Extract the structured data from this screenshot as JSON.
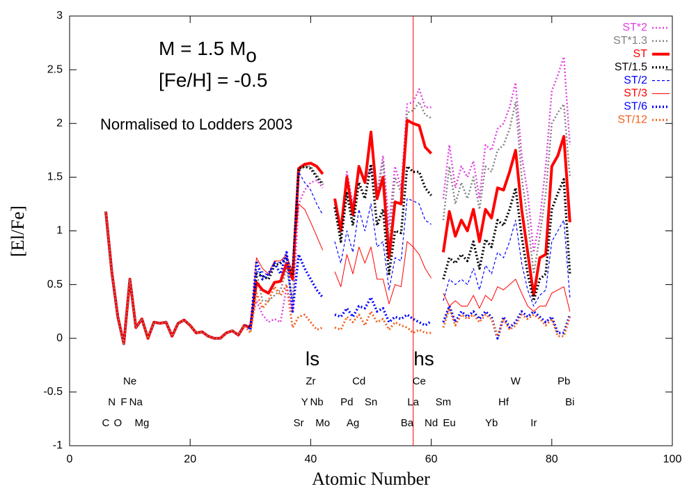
{
  "chart_data": {
    "type": "line",
    "x_label": "Atomic Number",
    "y_label": "[El/Fe]",
    "mass_label": "M = 1.5 M",
    "mass_sub": "o",
    "metallicity_label": "[Fe/H] = -0.5",
    "norm_label": "Normalised to Lodders 2003",
    "annotations": [
      "ls",
      "hs"
    ],
    "vline_x": 57,
    "vline_color": "#ff0000",
    "xlim": [
      0,
      100
    ],
    "xticks": [
      0,
      20,
      40,
      60,
      80,
      100
    ],
    "ylim": [
      -1,
      3
    ],
    "yticks": [
      -1,
      -0.5,
      0,
      0.5,
      1,
      1.5,
      2,
      2.5,
      3
    ],
    "legend": "upper right",
    "element_labels": [
      [
        {
          "symbol": "Ne",
          "z": 10
        },
        {
          "symbol": "Zr",
          "z": 40
        },
        {
          "symbol": "Cd",
          "z": 48
        },
        {
          "symbol": "Ce",
          "z": 58
        },
        {
          "symbol": "W",
          "z": 74
        },
        {
          "symbol": "Pb",
          "z": 82
        }
      ],
      [
        {
          "symbol": "N",
          "z": 7
        },
        {
          "symbol": "F",
          "z": 9
        },
        {
          "symbol": "Na",
          "z": 11
        },
        {
          "symbol": "Y",
          "z": 39
        },
        {
          "symbol": "Nb",
          "z": 41
        },
        {
          "symbol": "Pd",
          "z": 46
        },
        {
          "symbol": "Sn",
          "z": 50
        },
        {
          "symbol": "La",
          "z": 57
        },
        {
          "symbol": "Sm",
          "z": 62
        },
        {
          "symbol": "Hf",
          "z": 72
        },
        {
          "symbol": "Bi",
          "z": 83
        }
      ],
      [
        {
          "symbol": "C",
          "z": 6
        },
        {
          "symbol": "O",
          "z": 8
        },
        {
          "symbol": "Mg",
          "z": 12
        },
        {
          "symbol": "Sr",
          "z": 38
        },
        {
          "symbol": "Mo",
          "z": 42
        },
        {
          "symbol": "Ag",
          "z": 47
        },
        {
          "symbol": "Ba",
          "z": 56
        },
        {
          "symbol": "Nd",
          "z": 60
        },
        {
          "symbol": "Eu",
          "z": 63
        },
        {
          "symbol": "Yb",
          "z": 70
        },
        {
          "symbol": "Ir",
          "z": 77
        }
      ]
    ],
    "x": [
      6,
      7,
      8,
      9,
      10,
      11,
      12,
      13,
      14,
      15,
      16,
      17,
      18,
      19,
      20,
      21,
      22,
      23,
      24,
      25,
      26,
      27,
      28,
      29,
      30,
      31,
      32,
      33,
      34,
      35,
      36,
      37,
      38,
      39,
      40,
      41,
      42,
      43,
      44,
      45,
      46,
      47,
      48,
      49,
      50,
      51,
      52,
      53,
      54,
      55,
      56,
      57,
      58,
      59,
      60,
      61,
      62,
      63,
      64,
      65,
      66,
      67,
      68,
      69,
      70,
      71,
      72,
      73,
      74,
      75,
      76,
      77,
      78,
      79,
      80,
      81,
      82,
      83
    ],
    "series": [
      {
        "name": "ST*2",
        "color": "#e040e0",
        "width": 2.5,
        "dash": "dotted",
        "values": [
          1.18,
          0.62,
          0.2,
          -0.05,
          0.55,
          0.1,
          0.18,
          0.0,
          0.15,
          0.14,
          0.15,
          0.02,
          0.14,
          0.17,
          0.12,
          0.05,
          0.06,
          0.02,
          0.0,
          0.0,
          0.05,
          0.07,
          0.03,
          0.12,
          0.12,
          0.35,
          0.22,
          0.15,
          0.18,
          0.15,
          0.48,
          0.25,
          1.25,
          1.38,
          1.45,
          1.47,
          1.4,
          null,
          1.22,
          0.95,
          1.55,
          1.25,
          1.55,
          1.48,
          1.58,
          1.35,
          1.7,
          1.05,
          1.6,
          1.4,
          2.18,
          2.2,
          2.32,
          2.15,
          2.15,
          null,
          1.3,
          1.8,
          1.4,
          1.6,
          1.5,
          1.65,
          1.3,
          1.8,
          1.75,
          1.95,
          2.0,
          2.15,
          2.38,
          1.7,
          1.35,
          0.8,
          1.1,
          1.6,
          2.3,
          2.45,
          2.62,
          1.8
        ]
      },
      {
        "name": "ST*1.3",
        "color": "#808080",
        "width": 2.5,
        "dash": "dotted",
        "values": [
          1.18,
          0.62,
          0.2,
          -0.05,
          0.55,
          0.1,
          0.18,
          0.0,
          0.15,
          0.14,
          0.15,
          0.02,
          0.14,
          0.17,
          0.12,
          0.05,
          0.06,
          0.02,
          0.0,
          0.0,
          0.05,
          0.07,
          0.03,
          0.12,
          0.1,
          0.62,
          0.35,
          0.35,
          0.4,
          0.45,
          0.65,
          0.35,
          1.55,
          1.6,
          1.6,
          1.52,
          1.45,
          null,
          1.25,
          0.95,
          1.5,
          1.2,
          1.6,
          1.45,
          1.62,
          1.3,
          1.65,
          0.9,
          1.5,
          1.35,
          2.1,
          2.12,
          2.2,
          2.08,
          2.05,
          null,
          1.1,
          1.6,
          1.25,
          1.45,
          1.3,
          1.5,
          1.2,
          1.6,
          1.55,
          1.75,
          1.8,
          1.95,
          2.2,
          1.5,
          1.1,
          0.6,
          0.95,
          1.35,
          2.0,
          2.1,
          2.18,
          1.5
        ]
      },
      {
        "name": "ST",
        "color": "#ff0000",
        "width": 4,
        "dash": "solid",
        "values": [
          1.18,
          0.62,
          0.2,
          -0.05,
          0.55,
          0.1,
          0.18,
          0.0,
          0.15,
          0.14,
          0.15,
          0.02,
          0.14,
          0.17,
          0.12,
          0.05,
          0.06,
          0.02,
          0.0,
          0.0,
          0.05,
          0.07,
          0.03,
          0.12,
          0.1,
          0.52,
          0.45,
          0.42,
          0.52,
          0.53,
          0.7,
          0.55,
          1.58,
          1.62,
          1.63,
          1.6,
          1.53,
          null,
          1.3,
          1.0,
          1.5,
          1.15,
          1.6,
          1.45,
          1.92,
          1.3,
          1.5,
          0.75,
          1.27,
          1.25,
          2.03,
          2.0,
          1.98,
          1.78,
          1.72,
          null,
          0.8,
          1.18,
          0.95,
          1.1,
          1.0,
          1.2,
          0.9,
          1.2,
          1.12,
          1.4,
          1.38,
          1.55,
          1.75,
          1.2,
          0.8,
          0.4,
          0.75,
          0.78,
          1.6,
          1.7,
          1.88,
          1.08
        ]
      },
      {
        "name": "ST/1.5",
        "color": "#000000",
        "width": 3.5,
        "dash": "dotted",
        "values": [
          1.18,
          0.62,
          0.2,
          -0.05,
          0.55,
          0.1,
          0.18,
          0.0,
          0.15,
          0.14,
          0.15,
          0.02,
          0.14,
          0.17,
          0.12,
          0.05,
          0.06,
          0.02,
          0.0,
          0.0,
          0.05,
          0.07,
          0.03,
          0.12,
          0.1,
          0.6,
          0.58,
          0.55,
          0.68,
          0.7,
          0.75,
          0.6,
          1.58,
          1.6,
          1.58,
          1.5,
          1.43,
          null,
          1.22,
          0.9,
          1.35,
          1.05,
          1.45,
          1.3,
          1.62,
          1.05,
          1.2,
          0.6,
          1.0,
          0.98,
          1.6,
          1.55,
          1.55,
          1.4,
          1.33,
          null,
          0.55,
          0.75,
          0.7,
          0.78,
          0.72,
          0.9,
          0.65,
          0.92,
          0.85,
          1.1,
          1.05,
          1.2,
          1.4,
          0.95,
          0.6,
          0.35,
          0.55,
          0.6,
          1.2,
          1.35,
          1.48,
          0.6
        ]
      },
      {
        "name": "ST/2",
        "color": "#0000ff",
        "width": 1.2,
        "dash": "dashed",
        "values": [
          1.18,
          0.62,
          0.2,
          -0.05,
          0.55,
          0.1,
          0.18,
          0.0,
          0.15,
          0.14,
          0.15,
          0.02,
          0.14,
          0.17,
          0.12,
          0.05,
          0.06,
          0.02,
          0.0,
          0.0,
          0.05,
          0.07,
          0.03,
          0.12,
          0.1,
          0.62,
          0.62,
          0.58,
          0.72,
          0.7,
          0.75,
          0.62,
          1.55,
          1.45,
          1.38,
          1.25,
          1.15,
          null,
          0.9,
          0.7,
          1.0,
          0.8,
          1.2,
          1.0,
          1.25,
          0.85,
          0.9,
          0.45,
          0.75,
          0.72,
          1.3,
          1.28,
          1.25,
          1.1,
          1.06,
          null,
          0.35,
          0.55,
          0.5,
          0.55,
          0.5,
          0.65,
          0.45,
          0.68,
          0.6,
          0.8,
          0.75,
          0.9,
          1.1,
          0.7,
          0.45,
          0.3,
          0.4,
          0.45,
          0.9,
          1.0,
          1.1,
          0.38
        ]
      },
      {
        "name": "ST/3",
        "color": "#ff0000",
        "width": 1,
        "dash": "solid",
        "values": [
          1.18,
          0.62,
          0.2,
          -0.05,
          0.55,
          0.1,
          0.18,
          0.0,
          0.15,
          0.14,
          0.15,
          0.02,
          0.14,
          0.17,
          0.12,
          0.05,
          0.06,
          0.02,
          0.0,
          0.0,
          0.05,
          0.07,
          0.03,
          0.12,
          0.1,
          0.75,
          0.65,
          0.6,
          0.72,
          0.72,
          0.78,
          0.6,
          1.25,
          1.2,
          1.08,
          0.95,
          0.82,
          null,
          0.62,
          0.48,
          0.78,
          0.6,
          0.85,
          0.7,
          0.85,
          0.55,
          0.55,
          0.32,
          0.5,
          0.48,
          0.9,
          0.85,
          0.78,
          0.65,
          0.56,
          null,
          0.42,
          0.3,
          0.35,
          0.3,
          0.3,
          0.4,
          0.28,
          0.4,
          0.35,
          0.48,
          0.45,
          0.5,
          0.55,
          0.42,
          0.3,
          0.25,
          0.3,
          0.3,
          0.42,
          0.45,
          0.48,
          0.25
        ]
      },
      {
        "name": "ST/6",
        "color": "#0000ff",
        "width": 3.5,
        "dash": "dotted",
        "values": [
          1.18,
          0.62,
          0.2,
          -0.05,
          0.55,
          0.1,
          0.18,
          0.0,
          0.15,
          0.14,
          0.15,
          0.02,
          0.14,
          0.17,
          0.12,
          0.05,
          0.06,
          0.02,
          0.0,
          0.0,
          0.05,
          0.07,
          0.03,
          0.12,
          0.08,
          0.72,
          0.55,
          0.6,
          0.7,
          0.6,
          0.8,
          0.25,
          0.78,
          0.65,
          0.55,
          0.45,
          0.38,
          null,
          0.22,
          0.2,
          0.28,
          0.2,
          0.3,
          0.28,
          0.38,
          0.25,
          0.28,
          0.15,
          0.2,
          0.18,
          0.22,
          0.18,
          0.15,
          0.12,
          0.16,
          null,
          0.15,
          0.3,
          0.15,
          0.25,
          0.2,
          0.25,
          0.18,
          0.25,
          0.2,
          0.0,
          0.2,
          0.1,
          0.15,
          0.25,
          0.2,
          0.25,
          0.2,
          0.15,
          0.2,
          0.05,
          0.05,
          0.22
        ]
      },
      {
        "name": "ST/12",
        "color": "#f06020",
        "width": 3,
        "dash": "dotted",
        "values": [
          1.18,
          0.62,
          0.2,
          -0.05,
          0.55,
          0.1,
          0.18,
          0.0,
          0.15,
          0.14,
          0.15,
          0.02,
          0.14,
          0.17,
          0.12,
          0.05,
          0.06,
          0.02,
          0.0,
          0.0,
          0.05,
          0.07,
          0.03,
          0.12,
          0.05,
          0.42,
          0.28,
          0.35,
          0.48,
          0.4,
          0.5,
          0.1,
          0.2,
          0.22,
          0.15,
          0.08,
          0.1,
          null,
          0.1,
          0.08,
          0.2,
          0.15,
          0.22,
          0.12,
          0.25,
          0.15,
          0.18,
          0.08,
          0.15,
          0.12,
          0.1,
          0.05,
          0.08,
          0.05,
          0.05,
          null,
          0.1,
          0.28,
          0.12,
          0.22,
          0.18,
          0.22,
          0.15,
          0.22,
          0.18,
          0.02,
          0.18,
          0.08,
          0.12,
          0.22,
          0.18,
          0.22,
          0.18,
          0.12,
          0.18,
          0.02,
          0.02,
          0.2
        ]
      }
    ]
  }
}
